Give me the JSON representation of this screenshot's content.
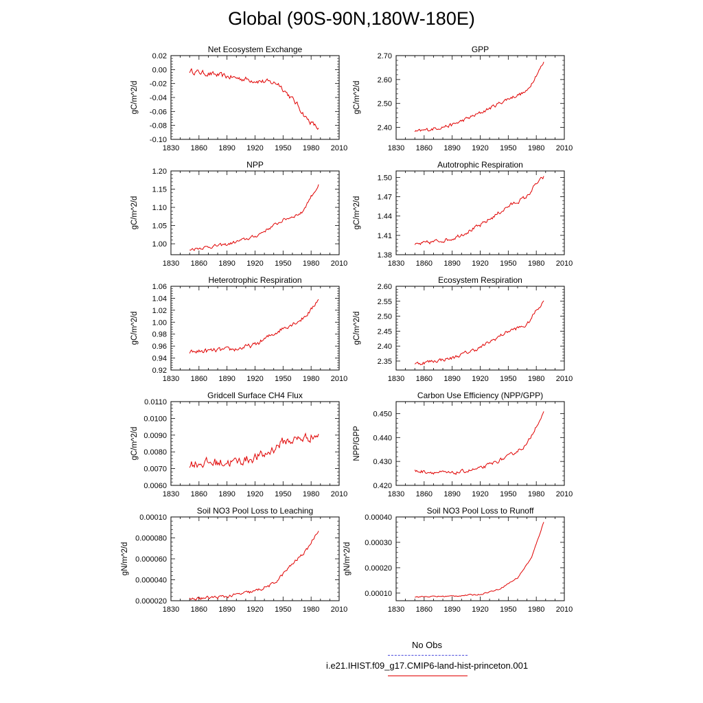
{
  "page": {
    "title": "Global (90S-90N,180W-180E)"
  },
  "legend": {
    "obs_label": "No Obs",
    "model_label": "i.e21.IHIST.f09_g17.CMIP6-land-hist-princeton.001",
    "obs_color": "#4a4adc",
    "model_color": "#e00000"
  },
  "chart_data": [
    {
      "type": "line",
      "title": "Net Ecosystem Exchange",
      "ylabel": "gC/m^2/d",
      "xlim": [
        1830,
        2010
      ],
      "ylim": [
        -0.1,
        0.02
      ],
      "xticks": [
        "1830",
        "1860",
        "1890",
        "1920",
        "1950",
        "1980",
        "2010"
      ],
      "yticks": [
        "0.02",
        "0.00",
        "-0.02",
        "-0.04",
        "-0.06",
        "-0.08",
        "-0.10"
      ],
      "yticks_values": [
        0.02,
        0.0,
        -0.02,
        -0.04,
        -0.06,
        -0.08,
        -0.1
      ],
      "line_color": "#e00000",
      "trend": [
        [
          1850,
          -0.002
        ],
        [
          1900,
          -0.012
        ],
        [
          1945,
          -0.02
        ],
        [
          1955,
          -0.035
        ],
        [
          1965,
          -0.05
        ],
        [
          1975,
          -0.07
        ],
        [
          1988,
          -0.085
        ]
      ],
      "noise": 0.006
    },
    {
      "type": "line",
      "title": "GPP",
      "ylabel": "gC/m^2/d",
      "xlim": [
        1830,
        2010
      ],
      "ylim": [
        2.35,
        2.7
      ],
      "xticks": [
        "1830",
        "1860",
        "1890",
        "1920",
        "1950",
        "1980",
        "2010"
      ],
      "yticks": [
        "2.70",
        "2.60",
        "2.50",
        "2.40"
      ],
      "yticks_values": [
        2.7,
        2.6,
        2.5,
        2.4
      ],
      "line_color": "#e00000",
      "trend": [
        [
          1850,
          2.38
        ],
        [
          1890,
          2.41
        ],
        [
          1920,
          2.46
        ],
        [
          1950,
          2.52
        ],
        [
          1970,
          2.55
        ],
        [
          1980,
          2.62
        ],
        [
          1988,
          2.67
        ]
      ],
      "noise": 0.012
    },
    {
      "type": "line",
      "title": "NPP",
      "ylabel": "gC/m^2/d",
      "xlim": [
        1830,
        2010
      ],
      "ylim": [
        0.97,
        1.2
      ],
      "xticks": [
        "1830",
        "1860",
        "1890",
        "1920",
        "1950",
        "1980",
        "2010"
      ],
      "yticks": [
        "1.20",
        "1.15",
        "1.10",
        "1.05",
        "1.00"
      ],
      "yticks_values": [
        1.2,
        1.15,
        1.1,
        1.05,
        1.0
      ],
      "line_color": "#e00000",
      "trend": [
        [
          1850,
          0.985
        ],
        [
          1890,
          0.998
        ],
        [
          1920,
          1.02
        ],
        [
          1950,
          1.065
        ],
        [
          1970,
          1.085
        ],
        [
          1980,
          1.13
        ],
        [
          1988,
          1.16
        ]
      ],
      "noise": 0.007
    },
    {
      "type": "line",
      "title": "Autotrophic Respiration",
      "ylabel": "gC/m^2/d",
      "xlim": [
        1830,
        2010
      ],
      "ylim": [
        1.38,
        1.51
      ],
      "xticks": [
        "1830",
        "1860",
        "1890",
        "1920",
        "1950",
        "1980",
        "2010"
      ],
      "yticks": [
        "1.50",
        "1.47",
        "1.44",
        "1.41",
        "1.38"
      ],
      "yticks_values": [
        1.5,
        1.47,
        1.44,
        1.41,
        1.38
      ],
      "line_color": "#e00000",
      "trend": [
        [
          1850,
          1.395
        ],
        [
          1890,
          1.405
        ],
        [
          1920,
          1.425
        ],
        [
          1950,
          1.455
        ],
        [
          1970,
          1.47
        ],
        [
          1980,
          1.49
        ],
        [
          1988,
          1.5
        ]
      ],
      "noise": 0.005
    },
    {
      "type": "line",
      "title": "Heterotrophic Respiration",
      "ylabel": "gC/m^2/d",
      "xlim": [
        1830,
        2010
      ],
      "ylim": [
        0.92,
        1.06
      ],
      "xticks": [
        "1830",
        "1860",
        "1890",
        "1920",
        "1950",
        "1980",
        "2010"
      ],
      "yticks": [
        "1.06",
        "1.04",
        "1.02",
        "1.00",
        "0.98",
        "0.96",
        "0.94",
        "0.92"
      ],
      "yticks_values": [
        1.06,
        1.04,
        1.02,
        1.0,
        0.98,
        0.96,
        0.94,
        0.92
      ],
      "line_color": "#e00000",
      "trend": [
        [
          1850,
          0.95
        ],
        [
          1900,
          0.955
        ],
        [
          1920,
          0.962
        ],
        [
          1950,
          0.99
        ],
        [
          1970,
          1.005
        ],
        [
          1980,
          1.02
        ],
        [
          1988,
          1.04
        ]
      ],
      "noise": 0.006
    },
    {
      "type": "line",
      "title": "Ecosystem Respiration",
      "ylabel": "gC/m^2/d",
      "xlim": [
        1830,
        2010
      ],
      "ylim": [
        2.32,
        2.6
      ],
      "xticks": [
        "1830",
        "1860",
        "1890",
        "1920",
        "1950",
        "1980",
        "2010"
      ],
      "yticks": [
        "2.60",
        "2.55",
        "2.50",
        "2.45",
        "2.40",
        "2.35"
      ],
      "yticks_values": [
        2.6,
        2.55,
        2.5,
        2.45,
        2.4,
        2.35
      ],
      "line_color": "#e00000",
      "trend": [
        [
          1850,
          2.34
        ],
        [
          1890,
          2.36
        ],
        [
          1920,
          2.395
        ],
        [
          1950,
          2.45
        ],
        [
          1970,
          2.47
        ],
        [
          1980,
          2.52
        ],
        [
          1988,
          2.55
        ]
      ],
      "noise": 0.01
    },
    {
      "type": "line",
      "title": "Gridcell Surface CH4 Flux",
      "ylabel": "gC/m^2/d",
      "xlim": [
        1830,
        2010
      ],
      "ylim": [
        0.006,
        0.011
      ],
      "xticks": [
        "1830",
        "1860",
        "1890",
        "1920",
        "1950",
        "1980",
        "2010"
      ],
      "yticks": [
        "0.0110",
        "0.0100",
        "0.0090",
        "0.0080",
        "0.0070",
        "0.0060"
      ],
      "yticks_values": [
        0.011,
        0.01,
        0.009,
        0.008,
        0.007,
        0.006
      ],
      "line_color": "#e00000",
      "trend": [
        [
          1850,
          0.0073
        ],
        [
          1900,
          0.0074
        ],
        [
          1930,
          0.0078
        ],
        [
          1950,
          0.0086
        ],
        [
          1970,
          0.0088
        ],
        [
          1988,
          0.009
        ]
      ],
      "noise": 0.00045
    },
    {
      "type": "line",
      "title": "Carbon Use Efficiency (NPP/GPP)",
      "ylabel": "NPP/GPP",
      "xlim": [
        1830,
        2010
      ],
      "ylim": [
        0.42,
        0.455
      ],
      "xticks": [
        "1830",
        "1860",
        "1890",
        "1920",
        "1950",
        "1980",
        "2010"
      ],
      "yticks": [
        "0.450",
        "0.440",
        "0.430",
        "0.420"
      ],
      "yticks_values": [
        0.45,
        0.44,
        0.43,
        0.42
      ],
      "line_color": "#e00000",
      "trend": [
        [
          1850,
          0.426
        ],
        [
          1890,
          0.425
        ],
        [
          1920,
          0.427
        ],
        [
          1950,
          0.432
        ],
        [
          1970,
          0.437
        ],
        [
          1980,
          0.445
        ],
        [
          1988,
          0.45
        ]
      ],
      "noise": 0.0012
    },
    {
      "type": "line",
      "title": "Soil NO3 Pool Loss to Leaching",
      "ylabel": "gN/m^2/d",
      "xlim": [
        1830,
        2010
      ],
      "ylim": [
        2e-05,
        0.0001
      ],
      "xticks": [
        "1830",
        "1860",
        "1890",
        "1920",
        "1950",
        "1980",
        "2010"
      ],
      "yticks": [
        "0.00010",
        "0.000080",
        "0.000060",
        "0.000040",
        "0.000020"
      ],
      "yticks_values": [
        0.0001,
        8e-05,
        6e-05,
        4e-05,
        2e-05
      ],
      "line_color": "#e00000",
      "trend": [
        [
          1850,
          2.15e-05
        ],
        [
          1890,
          2.4e-05
        ],
        [
          1920,
          2.9e-05
        ],
        [
          1940,
          3.6e-05
        ],
        [
          1960,
          5.5e-05
        ],
        [
          1975,
          6.8e-05
        ],
        [
          1988,
          8.8e-05
        ]
      ],
      "noise": 2.5e-06
    },
    {
      "type": "line",
      "title": "Soil NO3 Pool Loss to Runoff",
      "ylabel": "gN/m^2/d",
      "xlim": [
        1830,
        2010
      ],
      "ylim": [
        7e-05,
        0.0004
      ],
      "xticks": [
        "1830",
        "1860",
        "1890",
        "1920",
        "1950",
        "1980",
        "2010"
      ],
      "yticks": [
        "0.00040",
        "0.00030",
        "0.00020",
        "0.00010"
      ],
      "yticks_values": [
        0.0004,
        0.0003,
        0.0002,
        0.0001
      ],
      "line_color": "#e00000",
      "trend": [
        [
          1850,
          8.5e-05
        ],
        [
          1890,
          8.8e-05
        ],
        [
          1920,
          9.5e-05
        ],
        [
          1940,
          0.000115
        ],
        [
          1960,
          0.00016
        ],
        [
          1975,
          0.00024
        ],
        [
          1988,
          0.00038
        ]
      ],
      "noise": 4e-06
    }
  ]
}
